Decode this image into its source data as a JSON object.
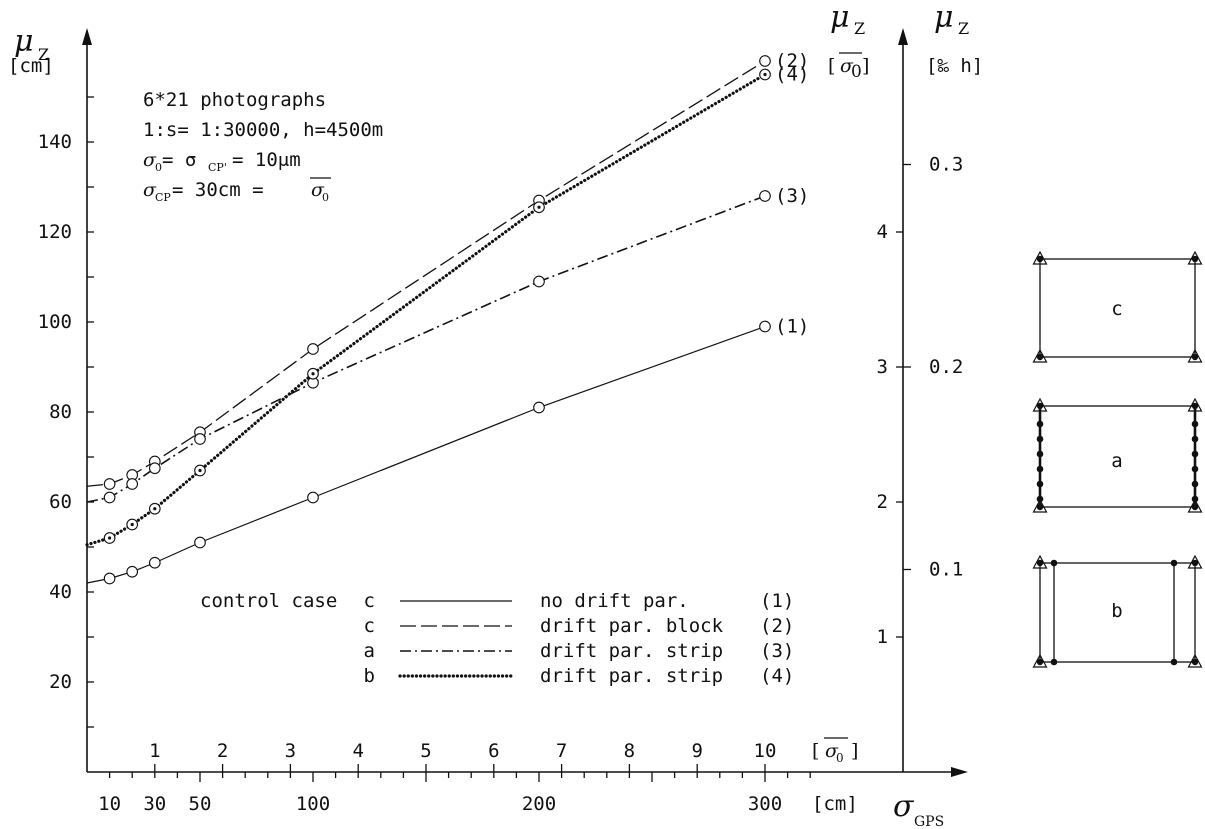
{
  "chart_data": {
    "type": "line",
    "axes": {
      "y_left": {
        "symbol": "μ",
        "subscript": "Z",
        "unit": "[cm]",
        "ticks": [
          "20",
          "40",
          "60",
          "80",
          "100",
          "120",
          "140"
        ],
        "ylim": [
          0,
          160
        ]
      },
      "y_right_sigma0": {
        "symbol": "μ",
        "subscript": "Z",
        "unit_open": "[",
        "unit_sigma": "σ",
        "unit_sub": "0",
        "unit_close": "]",
        "ticks": [
          "1",
          "2",
          "3",
          "4"
        ]
      },
      "y_right_permille": {
        "symbol": "μ",
        "subscript": "Z",
        "unit": "[‰ h]",
        "ticks": [
          "0.1",
          "0.2",
          "0.3"
        ]
      },
      "x_bottom": {
        "symbol": "σ",
        "subscript": "GPS",
        "unit": "[cm]",
        "ticks": [
          "10",
          "30",
          "50",
          "100",
          "200",
          "300"
        ],
        "xlim": [
          0,
          330
        ]
      },
      "x_top_sigma0": {
        "unit_open": "[",
        "unit_sigma": "σ",
        "unit_sub": "0",
        "unit_close": "]",
        "ticks": [
          "1",
          "2",
          "3",
          "4",
          "5",
          "6",
          "7",
          "8",
          "9",
          "10"
        ]
      }
    },
    "annotation": {
      "line1": "6*21 photographs",
      "line2": "1:s= 1:30000, h=4500m",
      "line3": {
        "a": "σ",
        "a_sub": "0",
        "b": " = σ",
        "b_sub": "CP'",
        "c": " = 10μm"
      },
      "line4": {
        "a": "σ",
        "a_sub": "CP",
        "b": "= 30cm = ",
        "c": "σ",
        "c_sub": "0"
      }
    },
    "series": [
      {
        "id": "1",
        "style": "solid",
        "x": [
          0,
          10,
          20,
          30,
          50,
          100,
          200,
          300
        ],
        "y": [
          42,
          43,
          44.5,
          46.5,
          51,
          61,
          81,
          99
        ]
      },
      {
        "id": "2",
        "style": "dashed",
        "x": [
          0,
          10,
          20,
          30,
          50,
          100,
          200,
          300
        ],
        "y": [
          63.5,
          64,
          66,
          69,
          75.5,
          94,
          127,
          158
        ]
      },
      {
        "id": "3",
        "style": "dashdot",
        "x": [
          0,
          10,
          20,
          30,
          50,
          100,
          200,
          300
        ],
        "y": [
          60,
          61,
          64,
          67.5,
          74,
          86.5,
          109,
          128
        ]
      },
      {
        "id": "4",
        "style": "dotted",
        "x": [
          0,
          10,
          20,
          30,
          50,
          100,
          200,
          300
        ],
        "y": [
          50.5,
          52,
          55,
          58.5,
          67,
          88.5,
          125.5,
          155
        ]
      }
    ],
    "series_labels": [
      "(1)",
      "(2)",
      "(3)",
      "(4)"
    ],
    "legend": {
      "placement": "bottom-center",
      "header": "control case",
      "rows": [
        {
          "case": "c",
          "text": "no drift par.",
          "num": "(1)",
          "style": "solid"
        },
        {
          "case": "c",
          "text": "drift par. block",
          "num": "(2)",
          "style": "dashed"
        },
        {
          "case": "a",
          "text": "drift par. strip",
          "num": "(3)",
          "style": "dashdot"
        },
        {
          "case": "b",
          "text": "drift par. strip",
          "num": "(4)",
          "style": "dotted"
        }
      ]
    },
    "control_diagrams": [
      {
        "label": "c"
      },
      {
        "label": "a"
      },
      {
        "label": "b"
      }
    ]
  }
}
